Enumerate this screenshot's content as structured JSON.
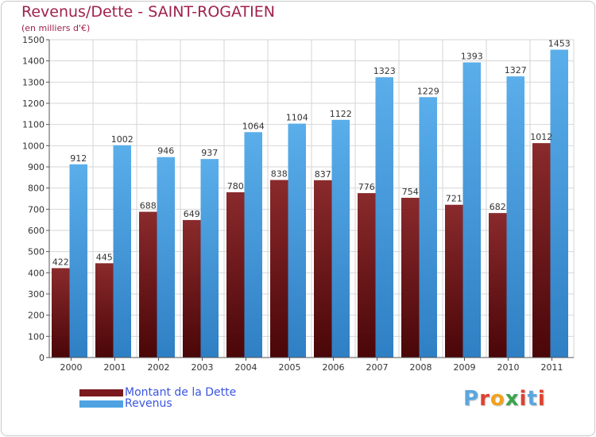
{
  "header": {
    "title": "Revenus/Dette - SAINT-ROGATIEN",
    "subtitle": "(en milliers d'€)"
  },
  "colors": {
    "dette": "#7a1a1e",
    "revenus": "#4ea2e2",
    "title": "#a0224c",
    "legend_text": "#3a55e0"
  },
  "legend": {
    "dette_label": "Montant de la Dette",
    "revenus_label": "Revenus"
  },
  "logo": {
    "text": "Proxiti",
    "letter_colors": [
      "#5aa7e0",
      "#e0412f",
      "#f2a21c",
      "#3aa34a",
      "#e0412f",
      "#5aa7e0",
      "#e0412f"
    ]
  },
  "chart_data": {
    "type": "bar",
    "categories": [
      "2000",
      "2001",
      "2002",
      "2003",
      "2004",
      "2005",
      "2006",
      "2007",
      "2008",
      "2009",
      "2010",
      "2011"
    ],
    "series": [
      {
        "name": "Montant de la Dette",
        "values": [
          422,
          445,
          688,
          649,
          780,
          838,
          837,
          776,
          754,
          721,
          682,
          1012
        ]
      },
      {
        "name": "Revenus",
        "values": [
          912,
          1002,
          946,
          937,
          1064,
          1104,
          1122,
          1323,
          1229,
          1393,
          1327,
          1453
        ]
      }
    ],
    "yticks": [
      0,
      100,
      200,
      300,
      400,
      500,
      600,
      700,
      800,
      900,
      1000,
      1100,
      1200,
      1300,
      1400,
      1500
    ],
    "ylim": [
      0,
      1500
    ],
    "grid": true,
    "legend_position": "bottom-left"
  }
}
